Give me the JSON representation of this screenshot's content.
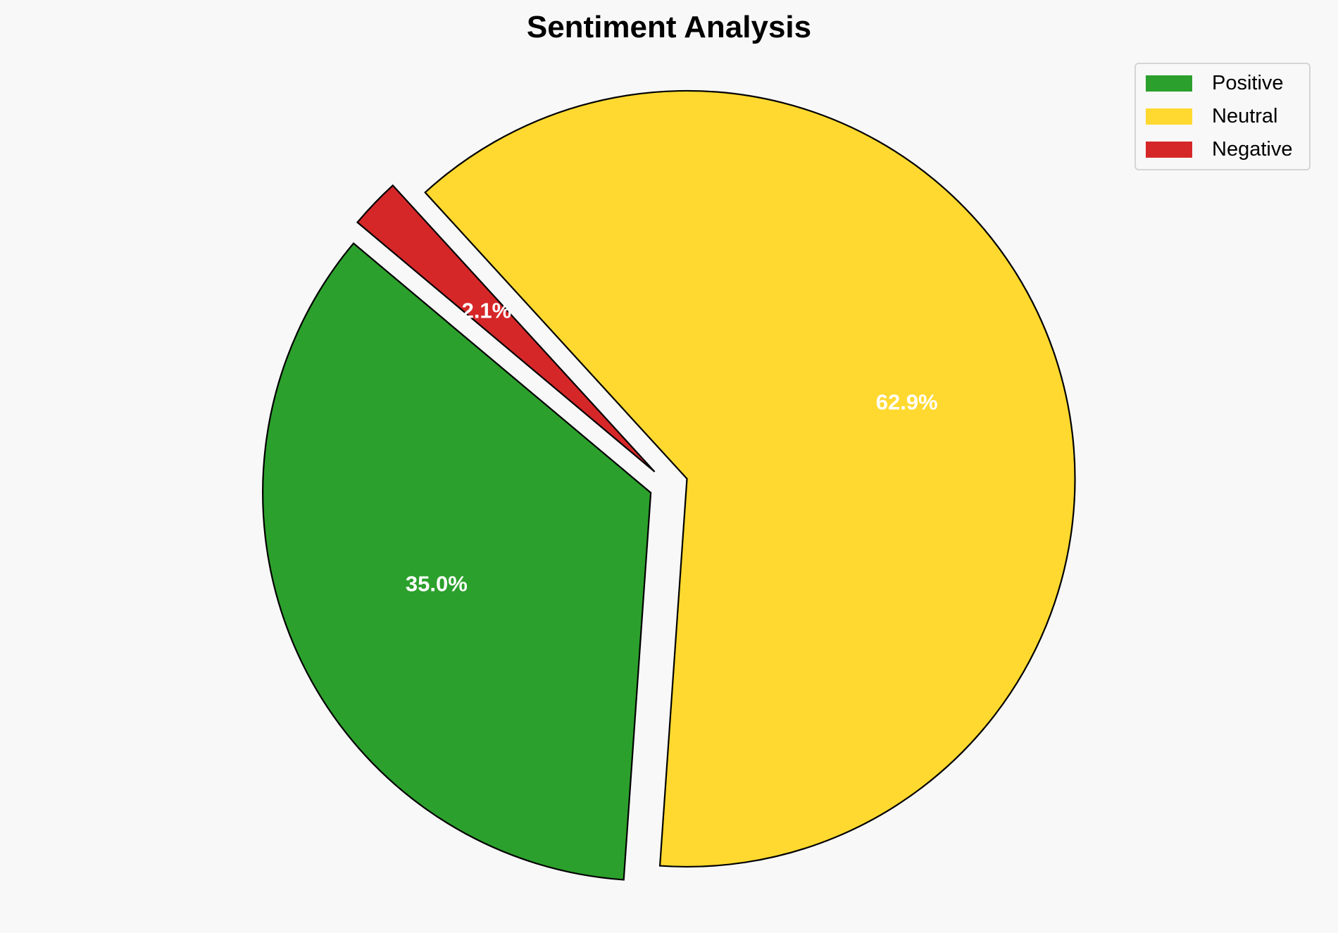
{
  "chart_data": {
    "type": "pie",
    "title": "Sentiment Analysis",
    "labels": [
      "Positive",
      "Neutral",
      "Negative"
    ],
    "values": [
      35.0,
      62.9,
      2.1
    ],
    "value_labels": [
      "35.0%",
      "62.9%",
      "2.1%"
    ],
    "colors": [
      "#2ca02c",
      "#ffd92f",
      "#d62728"
    ],
    "start_angle": 140,
    "explode": [
      0.05,
      0.05,
      0.05
    ],
    "edge_color": "#000000",
    "legend_placement": "top-right",
    "legend": [
      "Positive",
      "Neutral",
      "Negative"
    ]
  }
}
